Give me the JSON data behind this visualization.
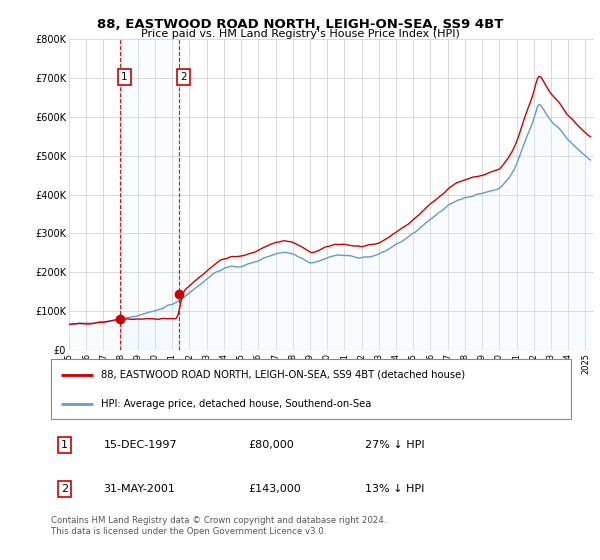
{
  "title": "88, EASTWOOD ROAD NORTH, LEIGH-ON-SEA, SS9 4BT",
  "subtitle": "Price paid vs. HM Land Registry's House Price Index (HPI)",
  "legend_line1": "88, EASTWOOD ROAD NORTH, LEIGH-ON-SEA, SS9 4BT (detached house)",
  "legend_line2": "HPI: Average price, detached house, Southend-on-Sea",
  "footnote": "Contains HM Land Registry data © Crown copyright and database right 2024.\nThis data is licensed under the Open Government Licence v3.0.",
  "transaction1_date": "15-DEC-1997",
  "transaction1_price": "£80,000",
  "transaction1_hpi": "27% ↓ HPI",
  "transaction1_year": 1997.958,
  "transaction1_value": 80000,
  "transaction2_date": "31-MAY-2001",
  "transaction2_price": "£143,000",
  "transaction2_hpi": "13% ↓ HPI",
  "transaction2_year": 2001.416,
  "transaction2_value": 143000,
  "price_color": "#cc0000",
  "hpi_color": "#6699cc",
  "hpi_span_color": "#ddeeff",
  "ylim": [
    0,
    800000
  ],
  "yticks": [
    0,
    100000,
    200000,
    300000,
    400000,
    500000,
    600000,
    700000,
    800000
  ],
  "ytick_labels": [
    "£0",
    "£100K",
    "£200K",
    "£300K",
    "£400K",
    "£500K",
    "£600K",
    "£700K",
    "£800K"
  ],
  "xlim_start": 1995.0,
  "xlim_end": 2025.5
}
